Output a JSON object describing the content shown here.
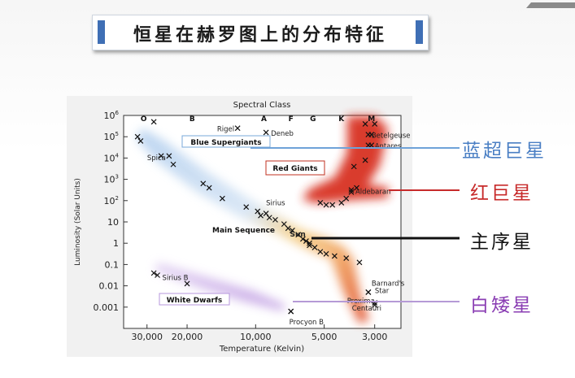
{
  "slide": {
    "title": "恒星在赫罗图上的分布特征"
  },
  "chart_data": {
    "type": "scatter",
    "title": "Spectral Class",
    "xlabel": "Temperature (Kelvin)",
    "ylabel": "Luminosity (Solar Units)",
    "x_scale": "log-reversed",
    "xlim": [
      38000,
      2300
    ],
    "ylim_exponent": [
      -4,
      6
    ],
    "x_ticks": [
      {
        "value": 30000,
        "label": "30,000"
      },
      {
        "value": 20000,
        "label": "20,000"
      },
      {
        "value": 10000,
        "label": "10,000"
      },
      {
        "value": 5000,
        "label": "5,000"
      },
      {
        "value": 3000,
        "label": "3,000"
      }
    ],
    "y_ticks": [
      {
        "exp": 6,
        "label": "10",
        "sup": "6"
      },
      {
        "exp": 5,
        "label": "10",
        "sup": "5"
      },
      {
        "exp": 4,
        "label": "10",
        "sup": "4"
      },
      {
        "exp": 3,
        "label": "10",
        "sup": "3"
      },
      {
        "exp": 2,
        "label": "10",
        "sup": "2"
      },
      {
        "exp": 1,
        "label": "10",
        "sup": ""
      },
      {
        "exp": 0,
        "label": "1",
        "sup": ""
      },
      {
        "exp": -1,
        "label": "0.1",
        "sup": ""
      },
      {
        "exp": -2,
        "label": "0.01",
        "sup": ""
      },
      {
        "exp": -3,
        "label": "0.001",
        "sup": ""
      }
    ],
    "spectral_classes": [
      {
        "label": "O",
        "temp": 31000
      },
      {
        "label": "B",
        "temp": 19000
      },
      {
        "label": "A",
        "temp": 9200
      },
      {
        "label": "F",
        "temp": 7000
      },
      {
        "label": "G",
        "temp": 5600
      },
      {
        "label": "K",
        "temp": 4200
      },
      {
        "label": "M",
        "temp": 3100
      }
    ],
    "region_labels": {
      "blue_supergiants": "Blue Supergiants",
      "red_giants": "Red Giants",
      "main_sequence": "Main Sequence",
      "white_dwarfs": "White Dwarfs"
    },
    "stars": [
      {
        "name": "Rigel",
        "temp": 12000,
        "lum": 5.4
      },
      {
        "name": "Deneb",
        "temp": 9000,
        "lum": 5.2
      },
      {
        "name": "Spica",
        "temp": 24000,
        "lum": 4.1
      },
      {
        "name": "Betelgeuse",
        "temp": 3200,
        "lum": 5.1
      },
      {
        "name": "Antares",
        "temp": 3100,
        "lum": 4.6
      },
      {
        "name": "Aldebaran",
        "temp": 3800,
        "lum": 2.4
      },
      {
        "name": "Sirius",
        "temp": 9000,
        "lum": 1.4
      },
      {
        "name": "Sun",
        "temp": 5800,
        "lum": 0
      },
      {
        "name": "Sirius B",
        "temp": 27000,
        "lum": -1.5
      },
      {
        "name": "Barnard's Star",
        "temp": 3200,
        "lum": -2.3
      },
      {
        "name": "Proxima Centauri",
        "temp": 3000,
        "lum": -2.9
      },
      {
        "name": "Procyon B",
        "temp": 7000,
        "lum": -3.2
      }
    ],
    "markers": [
      [
        33000,
        5.0
      ],
      [
        32000,
        4.8
      ],
      [
        28000,
        5.7
      ],
      [
        26000,
        4.1
      ],
      [
        23000,
        3.7
      ],
      [
        17000,
        2.8
      ],
      [
        16000,
        2.6
      ],
      [
        14000,
        2.1
      ],
      [
        11000,
        1.7
      ],
      [
        9800,
        1.5
      ],
      [
        9500,
        1.3
      ],
      [
        8700,
        1.2
      ],
      [
        8200,
        1.1
      ],
      [
        7500,
        0.9
      ],
      [
        7200,
        0.7
      ],
      [
        6900,
        0.6
      ],
      [
        6500,
        0.4
      ],
      [
        6200,
        0.2
      ],
      [
        6000,
        0.1
      ],
      [
        5800,
        -0.1
      ],
      [
        5500,
        -0.2
      ],
      [
        5200,
        -0.4
      ],
      [
        4900,
        -0.5
      ],
      [
        4500,
        -0.6
      ],
      [
        4000,
        -0.7
      ],
      [
        3500,
        -0.9
      ],
      [
        3200,
        -2.3
      ],
      [
        3000,
        -2.8
      ],
      [
        28000,
        -1.4
      ],
      [
        20000,
        -1.9
      ],
      [
        7000,
        -3.2
      ],
      [
        5200,
        1.9
      ],
      [
        4900,
        1.8
      ],
      [
        4600,
        1.8
      ],
      [
        4200,
        1.9
      ],
      [
        4000,
        2.1
      ],
      [
        3800,
        2.5
      ],
      [
        3600,
        2.6
      ],
      [
        3700,
        3.6
      ],
      [
        3300,
        3.9
      ],
      [
        3200,
        4.6
      ],
      [
        3100,
        5.1
      ],
      [
        3300,
        5.6
      ],
      [
        3000,
        5.6
      ]
    ]
  },
  "callouts": {
    "blue_supergiant": "蓝超巨星",
    "red_giant": "红巨星",
    "main_sequence": "主序星",
    "white_dwarf": "白矮星"
  },
  "colors": {
    "blue_supergiant": "#4a7fc4",
    "red_giant": "#c72a2a",
    "main_sequence": "#111111",
    "white_dwarf": "#8a3db3",
    "title_accent": "#3f6fb5"
  }
}
